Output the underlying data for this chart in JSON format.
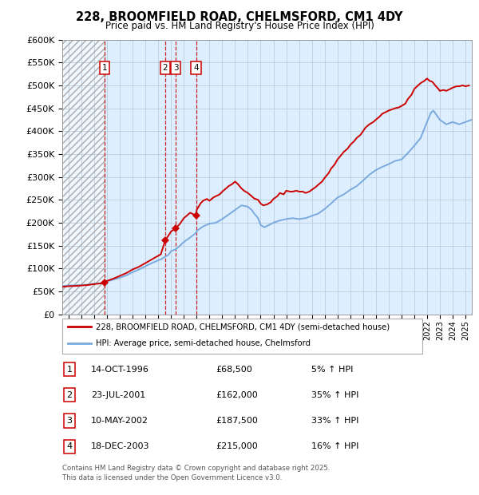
{
  "title": "228, BROOMFIELD ROAD, CHELMSFORD, CM1 4DY",
  "subtitle": "Price paid vs. HM Land Registry's House Price Index (HPI)",
  "legend_line1": "228, BROOMFIELD ROAD, CHELMSFORD, CM1 4DY (semi-detached house)",
  "legend_line2": "HPI: Average price, semi-detached house, Chelmsford",
  "footer1": "Contains HM Land Registry data © Crown copyright and database right 2025.",
  "footer2": "This data is licensed under the Open Government Licence v3.0.",
  "transactions": [
    {
      "num": 1,
      "date_year": 1996.79,
      "price": 68500,
      "label": "14-OCT-1996",
      "price_str": "£68,500",
      "hpi_str": "5% ↑ HPI"
    },
    {
      "num": 2,
      "date_year": 2001.55,
      "price": 162000,
      "label": "23-JUL-2001",
      "price_str": "£162,000",
      "hpi_str": "35% ↑ HPI"
    },
    {
      "num": 3,
      "date_year": 2002.36,
      "price": 187500,
      "label": "10-MAY-2002",
      "price_str": "£187,500",
      "hpi_str": "33% ↑ HPI"
    },
    {
      "num": 4,
      "date_year": 2003.96,
      "price": 215000,
      "label": "18-DEC-2003",
      "price_str": "£215,000",
      "hpi_str": "16% ↑ HPI"
    }
  ],
  "red_line_color": "#cc0000",
  "blue_line_color": "#7aaadd",
  "bg_blue_color": "#ddeeff",
  "grid_color": "#bbccdd",
  "ylim": [
    0,
    600000
  ],
  "yticks": [
    0,
    50000,
    100000,
    150000,
    200000,
    250000,
    300000,
    350000,
    400000,
    450000,
    500000,
    550000,
    600000
  ],
  "xstart": 1993.5,
  "xend": 2025.5,
  "hpi_years": [
    1993.5,
    1994,
    1994.5,
    1995,
    1995.5,
    1996,
    1996.5,
    1997,
    1997.5,
    1998,
    1998.5,
    1999,
    1999.5,
    2000,
    2000.5,
    2001,
    2001.2,
    2001.55,
    2001.8,
    2002,
    2002.36,
    2002.7,
    2003,
    2003.5,
    2003.96,
    2004,
    2004.5,
    2005,
    2005.5,
    2006,
    2006.5,
    2007,
    2007.5,
    2008,
    2008.3,
    2008.5,
    2008.8,
    2009,
    2009.3,
    2009.5,
    2010,
    2010.5,
    2011,
    2011.5,
    2012,
    2012.5,
    2013,
    2013.5,
    2014,
    2014.5,
    2015,
    2015.5,
    2016,
    2016.5,
    2017,
    2017.5,
    2018,
    2018.5,
    2019,
    2019.5,
    2020,
    2020.5,
    2021,
    2021.5,
    2022,
    2022.3,
    2022.5,
    2023,
    2023.5,
    2024,
    2024.5,
    2025,
    2025.5
  ],
  "hpi_values": [
    62000,
    63000,
    63500,
    64000,
    65000,
    67000,
    68000,
    72000,
    76000,
    80000,
    85000,
    92000,
    98000,
    105000,
    112000,
    118000,
    120000,
    126000,
    130000,
    138000,
    142000,
    150000,
    158000,
    168000,
    178000,
    182000,
    192000,
    198000,
    200000,
    208000,
    218000,
    228000,
    238000,
    235000,
    228000,
    220000,
    210000,
    195000,
    190000,
    193000,
    200000,
    205000,
    208000,
    210000,
    208000,
    210000,
    215000,
    220000,
    230000,
    242000,
    255000,
    262000,
    272000,
    280000,
    292000,
    305000,
    315000,
    322000,
    328000,
    335000,
    338000,
    352000,
    368000,
    385000,
    420000,
    440000,
    445000,
    425000,
    415000,
    420000,
    415000,
    420000,
    425000
  ],
  "red_years": [
    1993.5,
    1994,
    1994.5,
    1995,
    1995.5,
    1996,
    1996.5,
    1996.79,
    1996.79,
    1997,
    1997.5,
    1998,
    1998.5,
    1999,
    1999.5,
    2000,
    2000.5,
    2001,
    2001.2,
    2001.55,
    2001.55,
    2001.8,
    2002,
    2002.36,
    2002.36,
    2002.7,
    2003,
    2003.5,
    2003.96,
    2003.96,
    2004,
    2004.3,
    2004.5,
    2004.8,
    2005,
    2005.3,
    2005.5,
    2005.8,
    2006,
    2006.3,
    2006.5,
    2006.8,
    2007,
    2007.2,
    2007.5,
    2007.7,
    2008,
    2008.3,
    2008.5,
    2008.8,
    2009,
    2009.2,
    2009.5,
    2009.8,
    2010,
    2010.3,
    2010.5,
    2010.8,
    2011,
    2011.3,
    2011.5,
    2011.8,
    2012,
    2012.3,
    2012.5,
    2012.8,
    2013,
    2013.3,
    2013.5,
    2013.8,
    2014,
    2014.3,
    2014.5,
    2014.8,
    2015,
    2015.3,
    2015.5,
    2015.8,
    2016,
    2016.3,
    2016.5,
    2016.8,
    2017,
    2017.2,
    2017.5,
    2017.8,
    2018,
    2018.3,
    2018.5,
    2018.8,
    2019,
    2019.3,
    2019.5,
    2019.8,
    2020,
    2020.3,
    2020.5,
    2020.8,
    2021,
    2021.3,
    2021.5,
    2021.8,
    2022,
    2022.2,
    2022.4,
    2022.5,
    2022.7,
    2022.9,
    2023,
    2023.3,
    2023.5,
    2023.8,
    2024,
    2024.3,
    2024.5,
    2024.8,
    2025,
    2025.3
  ],
  "red_values": [
    60000,
    61500,
    62000,
    63000,
    64000,
    66000,
    67500,
    68500,
    68500,
    73000,
    78000,
    84000,
    90000,
    98000,
    104000,
    112000,
    120000,
    128000,
    131000,
    162000,
    162000,
    172000,
    181000,
    187500,
    187500,
    198000,
    210000,
    222000,
    215000,
    215000,
    228000,
    242000,
    248000,
    252000,
    248000,
    255000,
    258000,
    262000,
    268000,
    275000,
    280000,
    285000,
    290000,
    285000,
    275000,
    270000,
    265000,
    258000,
    253000,
    250000,
    242000,
    238000,
    240000,
    245000,
    252000,
    258000,
    265000,
    262000,
    270000,
    268000,
    268000,
    270000,
    268000,
    268000,
    265000,
    268000,
    272000,
    278000,
    283000,
    290000,
    298000,
    308000,
    318000,
    328000,
    338000,
    348000,
    355000,
    362000,
    370000,
    378000,
    385000,
    392000,
    400000,
    408000,
    415000,
    420000,
    425000,
    432000,
    438000,
    442000,
    445000,
    448000,
    450000,
    452000,
    455000,
    460000,
    470000,
    480000,
    492000,
    500000,
    505000,
    510000,
    515000,
    510000,
    508000,
    505000,
    498000,
    492000,
    488000,
    490000,
    488000,
    492000,
    495000,
    498000,
    498000,
    500000,
    498000,
    500000
  ]
}
